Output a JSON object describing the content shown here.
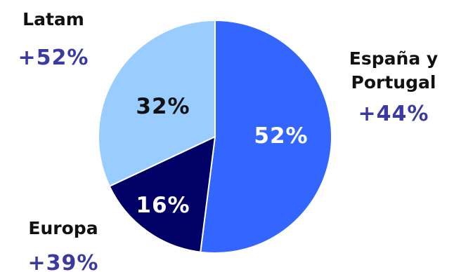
{
  "chart_data": {
    "type": "pie",
    "slices": [
      {
        "name": "España y Portugal",
        "name_lines": [
          "España y",
          "Portugal"
        ],
        "value": 52,
        "value_label": "52%",
        "growth": "+44%",
        "color": "#3366ff",
        "label_color": "#ffffff"
      },
      {
        "name": "Europa",
        "name_lines": [
          "Europa"
        ],
        "value": 16,
        "value_label": "16%",
        "growth": "+39%",
        "color": "#000066",
        "label_color": "#ffffff"
      },
      {
        "name": "Latam",
        "name_lines": [
          "Latam"
        ],
        "value": 32,
        "value_label": "32%",
        "growth": "+52%",
        "color": "#99ccff",
        "label_color": "#111111"
      }
    ],
    "start_angle_deg": 0,
    "direction": "clockwise",
    "slice_border_color": "#ffffff"
  }
}
